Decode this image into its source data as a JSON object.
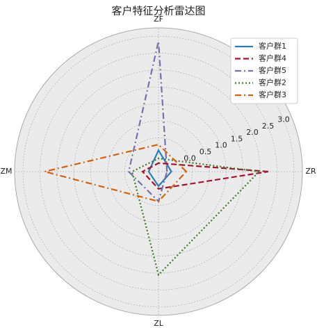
{
  "chart_data": {
    "type": "radar",
    "title": "客户特征分析雷达图",
    "categories": [
      "ZR",
      "ZF",
      "ZM",
      "ZL"
    ],
    "ylim": [
      -1,
      3.25
    ],
    "yticks": [
      {
        "value": 0,
        "label": "0.0"
      },
      {
        "value": 0.5,
        "label": "0.5"
      },
      {
        "value": 1,
        "label": "1.0"
      },
      {
        "value": 1.5,
        "label": "1.5"
      },
      {
        "value": 2,
        "label": "2.0"
      },
      {
        "value": 2.5,
        "label": "2.5"
      },
      {
        "value": 3,
        "label": "3.0"
      }
    ],
    "grid": true,
    "legend": "upper right",
    "series": [
      {
        "name": "客户群1",
        "color": "#2a7fb8",
        "dash": "solid",
        "values": [
          -0.62,
          -0.37,
          -0.71,
          -0.57
        ]
      },
      {
        "name": "客户群4",
        "color": "#a8102e",
        "dash": "dashed",
        "values": [
          2.24,
          -0.75,
          -0.53,
          -0.49
        ]
      },
      {
        "name": "客户群5",
        "color": "#7470b0",
        "dash": "dashdot",
        "values": [
          -0.75,
          2.85,
          -0.12,
          -0.12
        ]
      },
      {
        "name": "客户群2",
        "color": "#3c7a24",
        "dash": "dotted",
        "values": [
          1.97,
          -0.61,
          -0.22,
          2.05
        ]
      },
      {
        "name": "客户群3",
        "color": "#d6600a",
        "dash": "dashdot",
        "values": [
          -0.18,
          -0.2,
          2.36,
          -0.12
        ]
      }
    ]
  }
}
